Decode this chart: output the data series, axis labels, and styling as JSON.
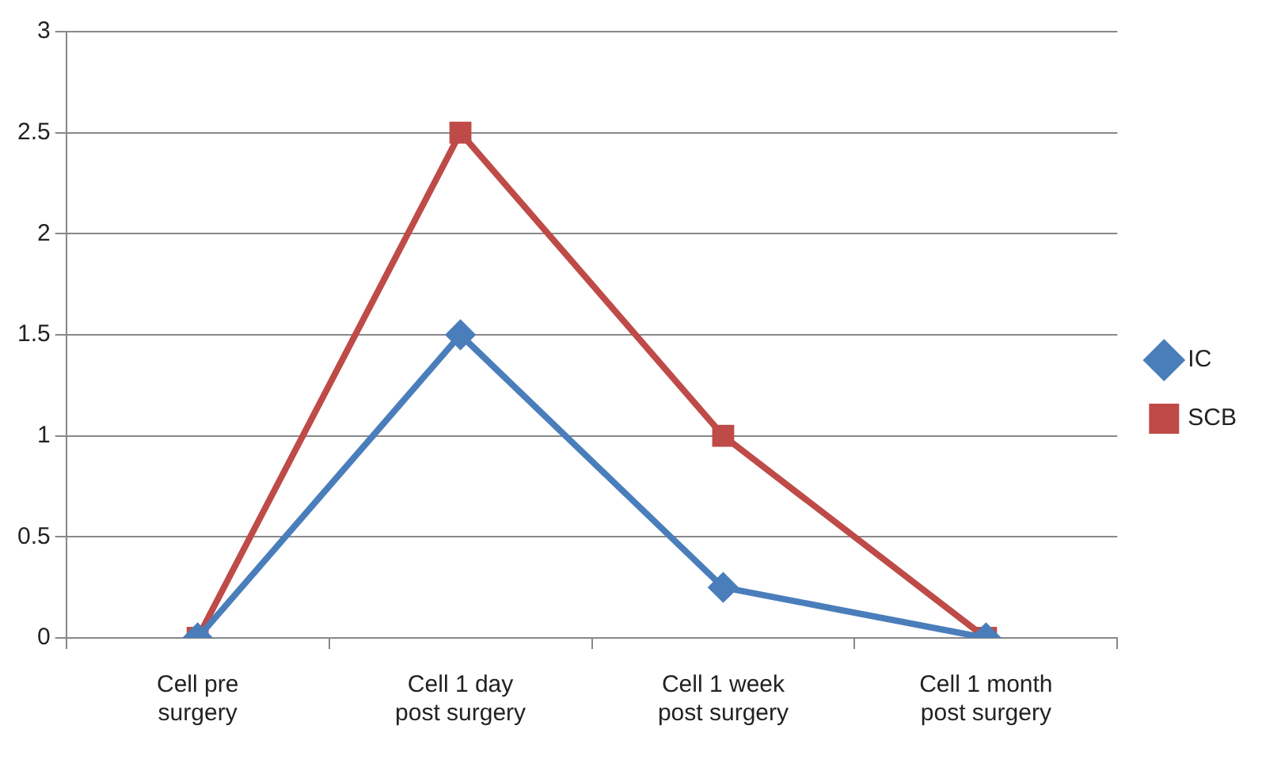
{
  "chart_data": {
    "type": "line",
    "categories": [
      "Cell pre surgery",
      "Cell 1 day post surgery",
      "Cell 1 week post surgery",
      "Cell 1 month post surgery"
    ],
    "series": [
      {
        "name": "IC",
        "color": "#4a7ebb",
        "marker": "diamond",
        "values": [
          0,
          1.5,
          0.25,
          0
        ]
      },
      {
        "name": "SCB",
        "color": "#be4b48",
        "marker": "square",
        "values": [
          0,
          2.5,
          1,
          0
        ]
      }
    ],
    "ylim": [
      0,
      3
    ],
    "yticks": [
      0,
      0.5,
      1,
      1.5,
      2,
      2.5,
      3
    ],
    "grid": "y",
    "legend": "right",
    "line_style": "solid"
  }
}
